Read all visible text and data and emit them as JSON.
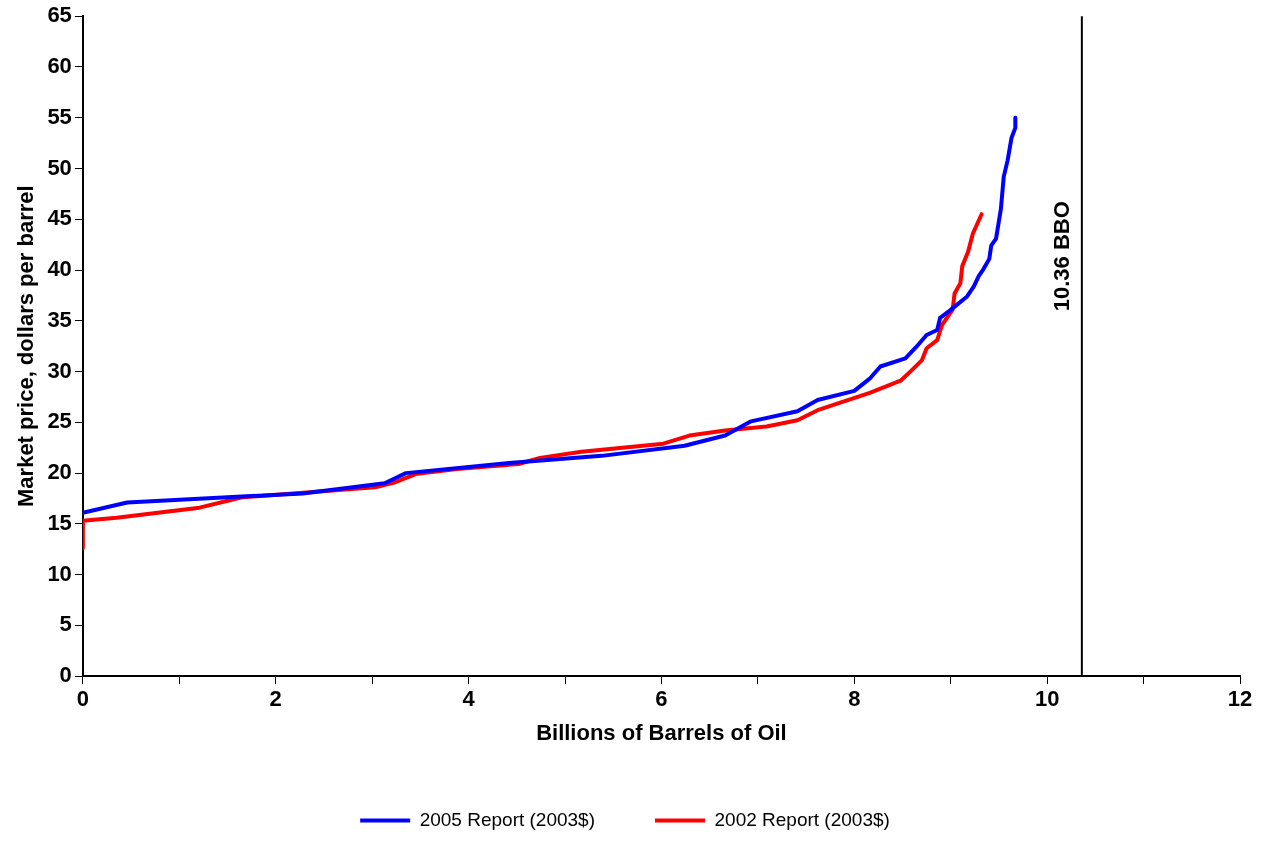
{
  "chart_data": {
    "type": "line",
    "xlabel": "Billions of Barrels of Oil",
    "ylabel": "Market price, dollars per barrel",
    "xlim": [
      0,
      12
    ],
    "ylim": [
      0,
      65
    ],
    "xticks": [
      0,
      {
        "value": 1,
        "label": null
      },
      2,
      {
        "value": 3,
        "label": null
      },
      4,
      {
        "value": 5,
        "label": null
      },
      6,
      {
        "value": 7,
        "label": null
      },
      8,
      {
        "value": 9,
        "label": null
      },
      10,
      {
        "value": 11,
        "label": null
      },
      12
    ],
    "yticks": [
      0,
      5,
      10,
      15,
      20,
      25,
      30,
      35,
      40,
      45,
      50,
      55,
      60,
      65
    ],
    "grid": false,
    "legend": "bottom",
    "marker": "none",
    "line_style": "solid",
    "series": [
      {
        "name": "2005 Report (2003$)",
        "color": "#0000ff",
        "x": [
          0,
          0.46,
          2.28,
          3.13,
          3.35,
          4.42,
          5.38,
          6.24,
          6.66,
          6.93,
          7.41,
          7.62,
          8.0,
          8.16,
          8.27,
          8.53,
          8.64,
          8.75,
          8.86,
          8.89,
          8.99,
          9.17,
          9.24,
          9.29,
          9.34,
          9.4,
          9.42,
          9.47,
          9.52,
          9.55,
          9.59,
          9.63,
          9.67,
          9.67
        ],
        "values": [
          16.1,
          17.1,
          18,
          19,
          20,
          21,
          21.7,
          22.7,
          23.7,
          25.1,
          26.1,
          27.2,
          28.1,
          29.3,
          30.5,
          31.3,
          32.4,
          33.6,
          34.1,
          35.3,
          36,
          37.4,
          38.4,
          39.4,
          40.1,
          41.1,
          42.4,
          43.1,
          46,
          49.2,
          50.8,
          53,
          54,
          55
        ]
      },
      {
        "name": "2002 Report (2003$)",
        "color": "#ff0000",
        "x": [
          0,
          0,
          0.35,
          1.21,
          1.64,
          3.03,
          3.24,
          3.45,
          3.88,
          4.52,
          4.74,
          5.17,
          6.02,
          6.29,
          6.66,
          7.09,
          7.41,
          7.62,
          8.16,
          8.48,
          8.57,
          8.7,
          8.75,
          8.86,
          8.91,
          9.02,
          9.04,
          9.1,
          9.12,
          9.18,
          9.23,
          9.32
        ],
        "values": [
          12.6,
          15.3,
          15.6,
          16.6,
          17.6,
          18.6,
          19.1,
          19.9,
          20.4,
          20.9,
          21.5,
          22.1,
          22.9,
          23.7,
          24.2,
          24.6,
          25.2,
          26.2,
          27.9,
          29.1,
          29.9,
          31.1,
          32.3,
          33.1,
          34.6,
          36.1,
          37.7,
          38.7,
          40.4,
          41.8,
          43.6,
          45.5
        ]
      }
    ],
    "ref_lines": [
      {
        "axis": "x",
        "value": 10.36,
        "label": "10.36 BBO",
        "color": "#000000",
        "line_style": "solid"
      }
    ]
  }
}
